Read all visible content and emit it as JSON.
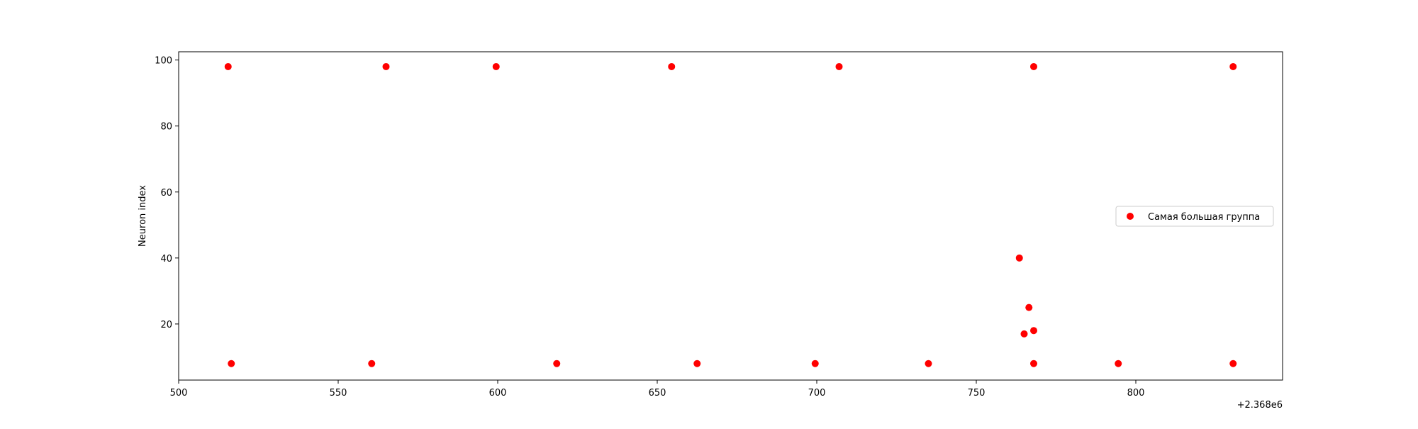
{
  "chart_data": {
    "type": "scatter",
    "title": "",
    "xlabel": "",
    "ylabel": "Neuron index",
    "x_offset_label": "+2.368e6",
    "xlim": [
      2368500,
      2368846
    ],
    "ylim": [
      3,
      102.5
    ],
    "x_ticks": [
      2368500,
      2368550,
      2368600,
      2368650,
      2368700,
      2368750,
      2368800
    ],
    "x_tick_labels": [
      "500",
      "550",
      "600",
      "650",
      "700",
      "750",
      "800"
    ],
    "y_ticks": [
      20,
      40,
      60,
      80,
      100
    ],
    "y_tick_labels": [
      "20",
      "40",
      "60",
      "80",
      "100"
    ],
    "grid": false,
    "legend": {
      "position": "center-right",
      "entries": [
        "Самая большая группа"
      ]
    },
    "series": [
      {
        "name": "Самая большая группа",
        "color": "#ff0000",
        "points": [
          {
            "x": 2368515.5,
            "y": 98
          },
          {
            "x": 2368565,
            "y": 98
          },
          {
            "x": 2368599.5,
            "y": 98
          },
          {
            "x": 2368654.5,
            "y": 98
          },
          {
            "x": 2368707,
            "y": 98
          },
          {
            "x": 2368768,
            "y": 98
          },
          {
            "x": 2368830.5,
            "y": 98
          },
          {
            "x": 2368516.5,
            "y": 8
          },
          {
            "x": 2368560.5,
            "y": 8
          },
          {
            "x": 2368618.5,
            "y": 8
          },
          {
            "x": 2368662.5,
            "y": 8
          },
          {
            "x": 2368699.5,
            "y": 8
          },
          {
            "x": 2368735,
            "y": 8
          },
          {
            "x": 2368768,
            "y": 8
          },
          {
            "x": 2368794.5,
            "y": 8
          },
          {
            "x": 2368830.5,
            "y": 8
          },
          {
            "x": 2368763.5,
            "y": 40
          },
          {
            "x": 2368766.5,
            "y": 25
          },
          {
            "x": 2368765,
            "y": 17
          },
          {
            "x": 2368768,
            "y": 18
          }
        ]
      }
    ]
  }
}
